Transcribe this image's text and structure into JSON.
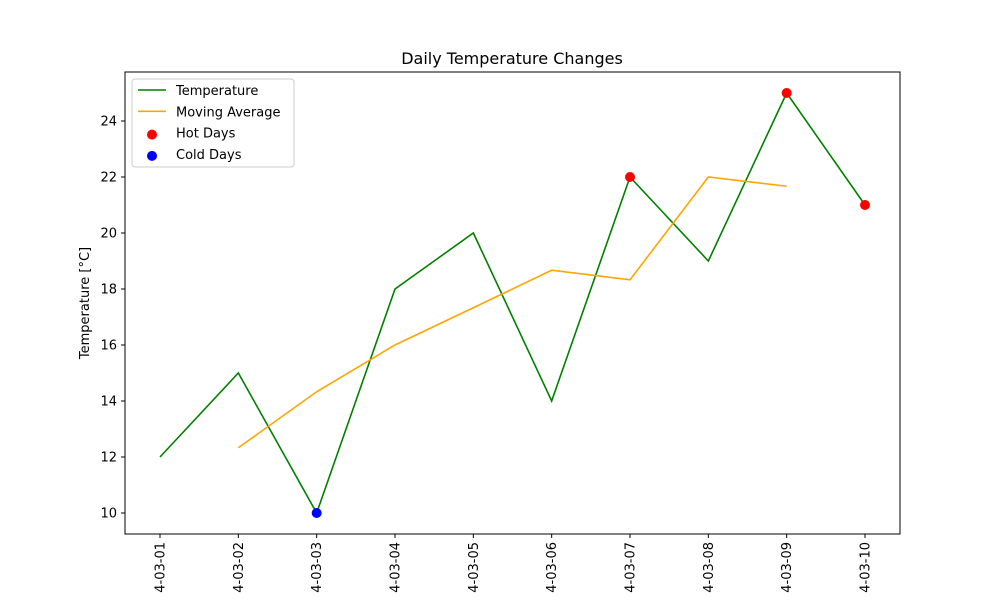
{
  "chart_data": {
    "type": "line",
    "title": "Daily Temperature Changes",
    "xlabel": "",
    "ylabel": "Temperature [°C]",
    "categories": [
      "4-03-01",
      "4-03-02",
      "4-03-03",
      "4-03-04",
      "4-03-05",
      "4-03-06",
      "4-03-07",
      "4-03-08",
      "4-03-09",
      "4-03-10"
    ],
    "ylim": [
      9.25,
      25.75
    ],
    "yticks": [
      10,
      12,
      14,
      16,
      18,
      20,
      22,
      24
    ],
    "grid": false,
    "legend_position": "top-left",
    "series": [
      {
        "name": "Temperature",
        "kind": "line",
        "color": "#008000",
        "values": [
          12,
          15,
          10,
          18,
          20,
          14,
          22,
          19,
          25,
          21
        ]
      },
      {
        "name": "Moving Average",
        "kind": "line",
        "color": "#ffa500",
        "values": [
          null,
          12.33,
          14.33,
          16,
          17.33,
          18.67,
          18.33,
          22,
          21.67,
          null
        ]
      },
      {
        "name": "Hot Days",
        "kind": "scatter",
        "color": "#ff0000",
        "points": [
          {
            "category": "4-03-07",
            "value": 22
          },
          {
            "category": "4-03-09",
            "value": 25
          },
          {
            "category": "4-03-10",
            "value": 21
          }
        ]
      },
      {
        "name": "Cold Days",
        "kind": "scatter",
        "color": "#0000ff",
        "points": [
          {
            "category": "4-03-03",
            "value": 10
          }
        ]
      }
    ]
  }
}
